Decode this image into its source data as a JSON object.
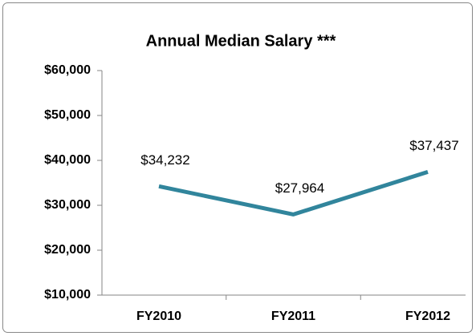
{
  "chart_data": {
    "type": "line",
    "title": "Annual Median Salary ***",
    "categories": [
      "FY2010",
      "FY2011",
      "FY2012"
    ],
    "values": [
      34232,
      27964,
      37437
    ],
    "value_labels": [
      "$34,232",
      "$27,964",
      "$37,437"
    ],
    "color": "#31859c",
    "ylim": [
      10000,
      60000
    ],
    "yticks": [
      {
        "value": 10000,
        "label": "$10,000"
      },
      {
        "value": 20000,
        "label": "$20,000"
      },
      {
        "value": 30000,
        "label": "$30,000"
      },
      {
        "value": 40000,
        "label": "$40,000"
      },
      {
        "value": 50000,
        "label": "$50,000"
      },
      {
        "value": 60000,
        "label": "$60,000"
      }
    ],
    "grid": false
  }
}
